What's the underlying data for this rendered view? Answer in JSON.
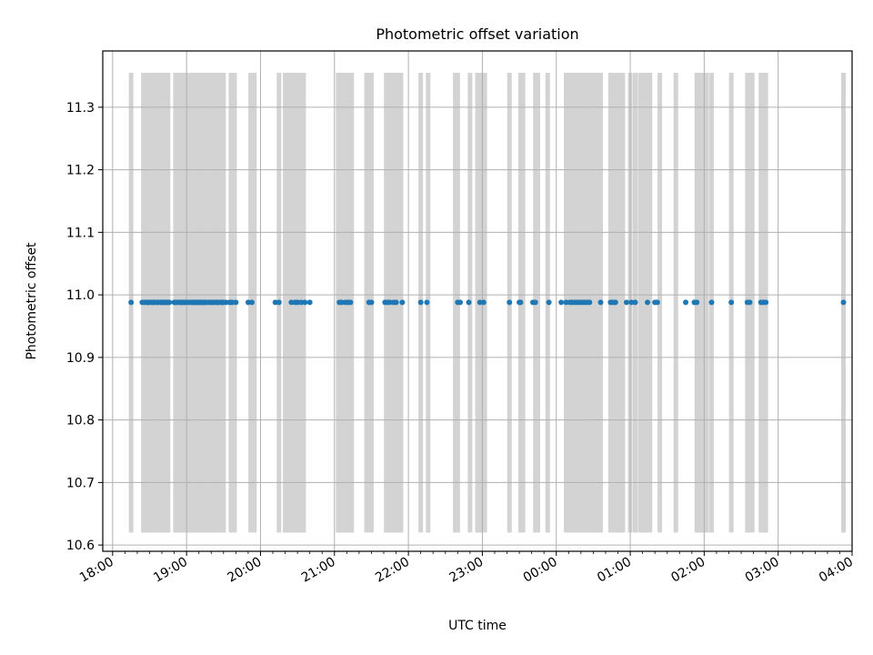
{
  "chart_data": {
    "type": "scatter",
    "title": "Photometric offset variation",
    "xlabel": "UTC time",
    "ylabel": "Photometric offset",
    "x_axis": {
      "type": "time",
      "range": [
        "17:52",
        "04:00"
      ],
      "ticks": [
        "18:00",
        "19:00",
        "20:00",
        "21:00",
        "22:00",
        "23:00",
        "00:00",
        "01:00",
        "02:00",
        "03:00",
        "04:00"
      ]
    },
    "y_axis": {
      "range": [
        10.59,
        11.39
      ],
      "ticks": [
        "10.6",
        "10.7",
        "10.8",
        "10.9",
        "11.0",
        "11.1",
        "11.2",
        "11.3"
      ]
    },
    "grid": true,
    "band_span": [
      10.62,
      11.355
    ],
    "series": [
      {
        "values_y": 10.988,
        "x": [
          "18:15",
          "18:24",
          "18:26",
          "18:28",
          "18:29",
          "18:30",
          "18:32",
          "18:33",
          "18:34",
          "18:36",
          "18:37",
          "18:39",
          "18:40",
          "18:41",
          "18:42",
          "18:43",
          "18:44",
          "18:45",
          "18:46",
          "18:50",
          "18:51",
          "18:52",
          "18:54",
          "18:55",
          "18:56",
          "18:57",
          "18:58",
          "18:59",
          "19:01",
          "19:02",
          "19:04",
          "19:05",
          "19:06",
          "19:07",
          "19:08",
          "19:09",
          "19:10",
          "19:11",
          "19:12",
          "19:13",
          "19:14",
          "19:15",
          "19:16",
          "19:18",
          "19:20",
          "19:21",
          "19:22",
          "19:24",
          "19:25",
          "19:26",
          "19:28",
          "19:29",
          "19:30",
          "19:32",
          "19:35",
          "19:37",
          "19:40",
          "19:50",
          "19:53",
          "20:12",
          "20:15",
          "20:25",
          "20:28",
          "20:30",
          "20:33",
          "20:36",
          "20:40",
          "21:04",
          "21:06",
          "21:09",
          "21:11",
          "21:13",
          "21:28",
          "21:30",
          "21:41",
          "21:43",
          "21:45",
          "21:48",
          "21:50",
          "21:55",
          "22:10",
          "22:15",
          "22:40",
          "22:42",
          "22:49",
          "22:58",
          "23:01",
          "23:22",
          "23:30",
          "23:31",
          "23:41",
          "23:43",
          "23:54",
          "00:04",
          "00:08",
          "00:11",
          "00:13",
          "00:15",
          "00:17",
          "00:19",
          "00:21",
          "00:23",
          "00:25",
          "00:27",
          "00:36",
          "00:44",
          "00:46",
          "00:48",
          "00:57",
          "01:01",
          "01:04",
          "01:14",
          "01:20",
          "01:22",
          "01:45",
          "01:52",
          "01:54",
          "02:06",
          "02:22",
          "02:35",
          "02:37",
          "02:46",
          "02:48",
          "02:50",
          "03:53"
        ]
      }
    ],
    "bands_x": [
      "18:15",
      "18:25",
      "18:26",
      "18:27",
      "18:28",
      "18:29",
      "18:30",
      "18:31",
      "18:32",
      "18:33",
      "18:34",
      "18:36",
      "18:37",
      "18:38",
      "18:39",
      "18:40",
      "18:41",
      "18:42",
      "18:43",
      "18:44",
      "18:45",
      "18:51",
      "18:52",
      "18:53",
      "18:54",
      "18:55",
      "18:56",
      "18:57",
      "18:58",
      "18:59",
      "19:00",
      "19:01",
      "19:02",
      "19:03",
      "19:04",
      "19:05",
      "19:06",
      "19:07",
      "19:08",
      "19:09",
      "19:10",
      "19:11",
      "19:12",
      "19:13",
      "19:14",
      "19:15",
      "19:16",
      "19:17",
      "19:18",
      "19:19",
      "19:20",
      "19:21",
      "19:22",
      "19:23",
      "19:24",
      "19:25",
      "19:26",
      "19:27",
      "19:28",
      "19:29",
      "19:30",
      "19:36",
      "19:39",
      "19:52",
      "19:55",
      "20:15",
      "20:20",
      "20:22",
      "20:24",
      "20:26",
      "20:28",
      "20:30",
      "20:32",
      "20:35",
      "21:03",
      "21:04",
      "21:06",
      "21:08",
      "21:10",
      "21:12",
      "21:14",
      "21:26",
      "21:28",
      "21:30",
      "21:42",
      "21:43",
      "21:44",
      "21:45",
      "21:46",
      "21:48",
      "21:49",
      "21:50",
      "21:51",
      "21:52",
      "21:53",
      "21:54",
      "22:10",
      "22:16",
      "22:38",
      "22:40",
      "22:50",
      "22:56",
      "22:59",
      "23:00",
      "23:01",
      "23:02",
      "23:22",
      "23:31",
      "23:33",
      "23:43",
      "23:45",
      "23:53",
      "00:08",
      "00:10",
      "00:12",
      "00:14",
      "00:16",
      "00:18",
      "00:20",
      "00:22",
      "00:24",
      "00:26",
      "00:28",
      "00:30",
      "00:32",
      "00:34",
      "00:36",
      "00:44",
      "00:47",
      "00:50",
      "00:52",
      "00:54",
      "01:00",
      "01:04",
      "01:08",
      "01:11",
      "01:13",
      "01:14",
      "01:16",
      "01:24",
      "01:37",
      "01:54",
      "01:55",
      "01:56",
      "01:57",
      "01:58",
      "01:59",
      "02:00",
      "02:01",
      "02:02",
      "02:06",
      "02:22",
      "02:35",
      "02:37",
      "02:39",
      "02:46",
      "02:48",
      "02:50",
      "03:53"
    ],
    "colors": {
      "points": "#1f77b4",
      "bands": "#d3d3d3",
      "grid": "#b0b0b0",
      "axes": "#000000"
    }
  }
}
